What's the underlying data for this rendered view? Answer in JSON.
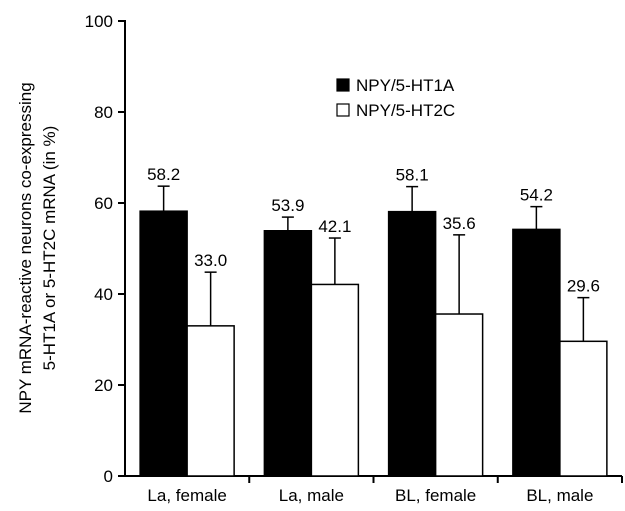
{
  "chart_data": {
    "type": "bar",
    "xlabel": "",
    "ylabel": [
      "NPY mRNA-reactive neurons co-expressing",
      "5-HT1A or 5-HT2C mRNA (in %)"
    ],
    "ylim": [
      0,
      100
    ],
    "yticks": [
      0,
      20,
      40,
      60,
      80,
      100
    ],
    "categories": [
      "La, female",
      "La, male",
      "BL, female",
      "BL, male"
    ],
    "legend_position": "top-right",
    "grid": false,
    "series": [
      {
        "name": "NPY/5-HT1A",
        "fill": "#000000",
        "values": [
          58.2,
          53.9,
          58.1,
          54.2
        ],
        "labels": [
          "58.2",
          "53.9",
          "58.1",
          "54.2"
        ],
        "error": [
          5.5,
          3.0,
          5.5,
          5.0
        ]
      },
      {
        "name": "NPY/5-HT2C",
        "fill": "#ffffff",
        "values": [
          33.0,
          42.1,
          35.6,
          29.6
        ],
        "labels": [
          "33.0",
          "42.1",
          "35.6",
          "29.6"
        ],
        "error": [
          11.8,
          10.2,
          17.4,
          9.6
        ]
      }
    ]
  }
}
